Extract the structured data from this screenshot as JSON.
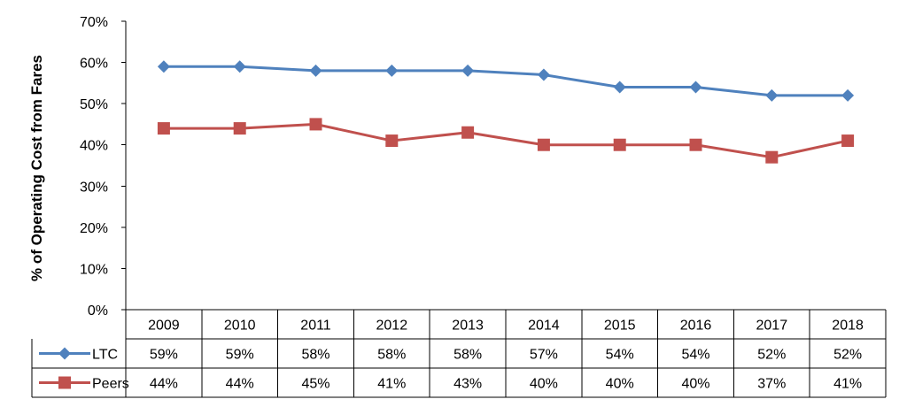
{
  "chart_data": {
    "type": "line",
    "title": "",
    "xlabel": "",
    "ylabel": "% of Operating Cost from Fares",
    "ylim": [
      0,
      70
    ],
    "yticks": [
      "0%",
      "10%",
      "20%",
      "30%",
      "40%",
      "50%",
      "60%",
      "70%"
    ],
    "categories": [
      "2009",
      "2010",
      "2011",
      "2012",
      "2013",
      "2014",
      "2015",
      "2016",
      "2017",
      "2018"
    ],
    "grid": false,
    "legend": "data-table-left",
    "series": [
      {
        "name": "LTC",
        "color": "#4f81bd",
        "marker": "diamond",
        "values": [
          59,
          59,
          58,
          58,
          58,
          57,
          54,
          54,
          52,
          52
        ],
        "labels": [
          "59%",
          "59%",
          "58%",
          "58%",
          "58%",
          "57%",
          "54%",
          "54%",
          "52%",
          "52%"
        ]
      },
      {
        "name": "Peers",
        "color": "#c0504d",
        "marker": "square",
        "values": [
          44,
          44,
          45,
          41,
          43,
          40,
          40,
          40,
          37,
          41
        ],
        "labels": [
          "44%",
          "44%",
          "45%",
          "41%",
          "43%",
          "40%",
          "40%",
          "40%",
          "37%",
          "41%"
        ]
      }
    ]
  }
}
